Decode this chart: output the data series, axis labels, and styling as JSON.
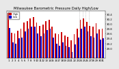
{
  "title": "Milwaukee Barometric Pressure Daily High/Low",
  "days": [
    1,
    2,
    3,
    4,
    5,
    6,
    7,
    8,
    9,
    10,
    11,
    12,
    13,
    14,
    15,
    16,
    17,
    18,
    19,
    20,
    21,
    22,
    23,
    24,
    25,
    26,
    27,
    28,
    29,
    30,
    31
  ],
  "highs": [
    30.45,
    29.65,
    29.6,
    29.72,
    29.8,
    30.05,
    30.12,
    30.22,
    30.28,
    30.05,
    29.92,
    29.98,
    30.12,
    30.18,
    29.88,
    29.62,
    29.58,
    29.68,
    29.52,
    29.48,
    29.32,
    29.58,
    29.82,
    30.18,
    30.22,
    30.08,
    29.92,
    29.88,
    30.02,
    29.78,
    29.82
  ],
  "lows": [
    29.85,
    29.25,
    29.2,
    29.4,
    29.45,
    29.7,
    29.8,
    29.9,
    29.88,
    29.6,
    29.5,
    29.6,
    29.75,
    29.8,
    29.45,
    29.2,
    29.1,
    29.25,
    29.1,
    29.05,
    28.85,
    29.15,
    29.45,
    29.82,
    29.88,
    29.7,
    29.5,
    29.45,
    29.6,
    29.35,
    29.4
  ],
  "high_color": "#cc0000",
  "low_color": "#0000cc",
  "ymin": 28.6,
  "ymax": 30.55,
  "ytick_values": [
    29.0,
    29.2,
    29.4,
    29.6,
    29.8,
    30.0,
    30.2,
    30.4
  ],
  "ytick_labels": [
    "29.0",
    "29.2",
    "29.4",
    "29.6",
    "29.8",
    "30.0",
    "30.2",
    "30.4"
  ],
  "bg_color": "#e8e8e8",
  "plot_bg": "#ffffff",
  "title_fontsize": 3.8,
  "tick_fontsize": 2.8,
  "bar_width": 0.38,
  "dashed_vline_positions": [
    23.5,
    24.5,
    25.5,
    26.5
  ],
  "legend_label_high": "High",
  "legend_label_low": "Low",
  "yaxis_side": "right"
}
